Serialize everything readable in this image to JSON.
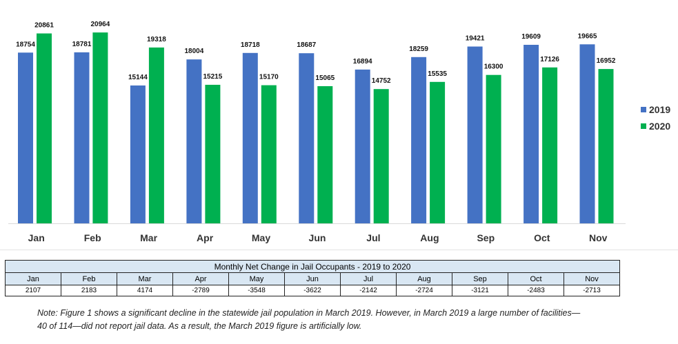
{
  "chart_data": {
    "type": "bar",
    "categories": [
      "Jan",
      "Feb",
      "Mar",
      "Apr",
      "May",
      "Jun",
      "Jul",
      "Aug",
      "Sep",
      "Oct",
      "Nov"
    ],
    "series": [
      {
        "name": "2019",
        "color": "#4472c4",
        "values": [
          18754,
          18781,
          15144,
          18004,
          18718,
          18687,
          16894,
          18259,
          19421,
          19609,
          19665
        ]
      },
      {
        "name": "2020",
        "color": "#00b050",
        "values": [
          20861,
          20964,
          19318,
          15215,
          15170,
          15065,
          14752,
          15535,
          16300,
          17126,
          16952
        ]
      }
    ],
    "ylim": [
      0,
      21200
    ],
    "grid": false,
    "legend_position": "right",
    "data_labels": true
  },
  "table": {
    "title": "Monthly Net Change in Jail Occupants - 2019 to 2020",
    "months": [
      "Jan",
      "Feb",
      "Mar",
      "Apr",
      "May",
      "Jun",
      "Jul",
      "Aug",
      "Sep",
      "Oct",
      "Nov"
    ],
    "values": [
      "2107",
      "2183",
      "4174",
      "-2789",
      "-3548",
      "-3622",
      "-2142",
      "-2724",
      "-3121",
      "-2483",
      "-2713"
    ]
  },
  "note": {
    "line1": "Note: Figure 1 shows a significant decline in the statewide jail population in March 2019. However, in March 2019 a large number of facilities—",
    "line2": "40 of 114—did not report jail data. As a result, the March 2019 figure is artificially low."
  }
}
